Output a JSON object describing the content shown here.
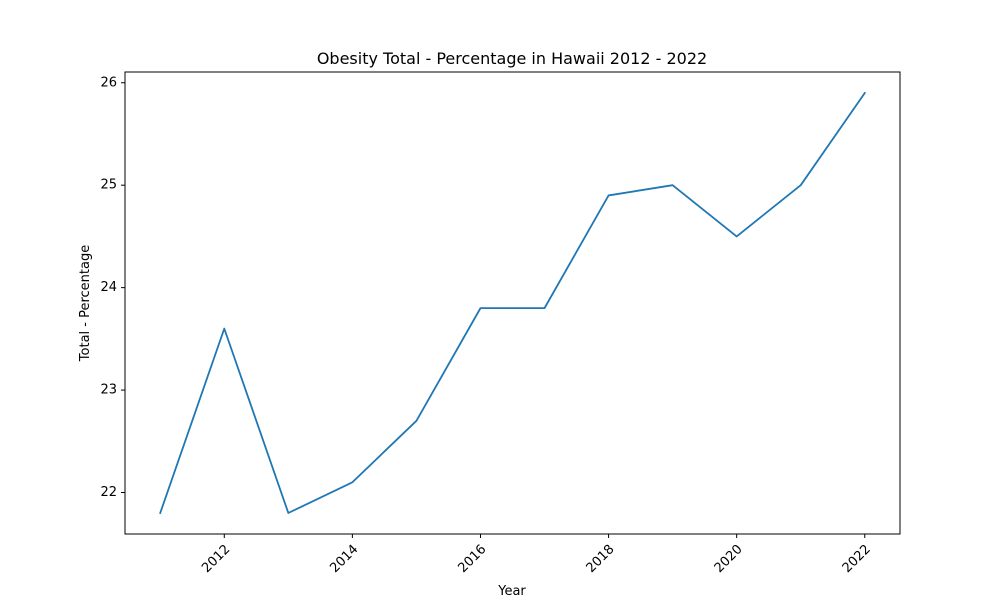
{
  "chart_data": {
    "type": "line",
    "title": "Obesity Total - Percentage in Hawaii 2012 - 2022",
    "xlabel": "Year",
    "ylabel": "Total - Percentage",
    "x": [
      2011,
      2012,
      2013,
      2014,
      2015,
      2016,
      2017,
      2018,
      2019,
      2020,
      2021,
      2022
    ],
    "series": [
      {
        "values": [
          21.8,
          23.6,
          21.8,
          22.1,
          22.7,
          23.8,
          23.8,
          24.9,
          25.0,
          24.5,
          25.0,
          25.9
        ]
      }
    ],
    "xticks": [
      2012,
      2014,
      2016,
      2018,
      2020,
      2022
    ],
    "yticks": [
      22,
      23,
      24,
      25,
      26
    ],
    "xlim": [
      2010.45,
      2022.55
    ],
    "ylim": [
      21.595,
      26.105
    ],
    "grid": false,
    "line_color": "#1f77b4"
  }
}
